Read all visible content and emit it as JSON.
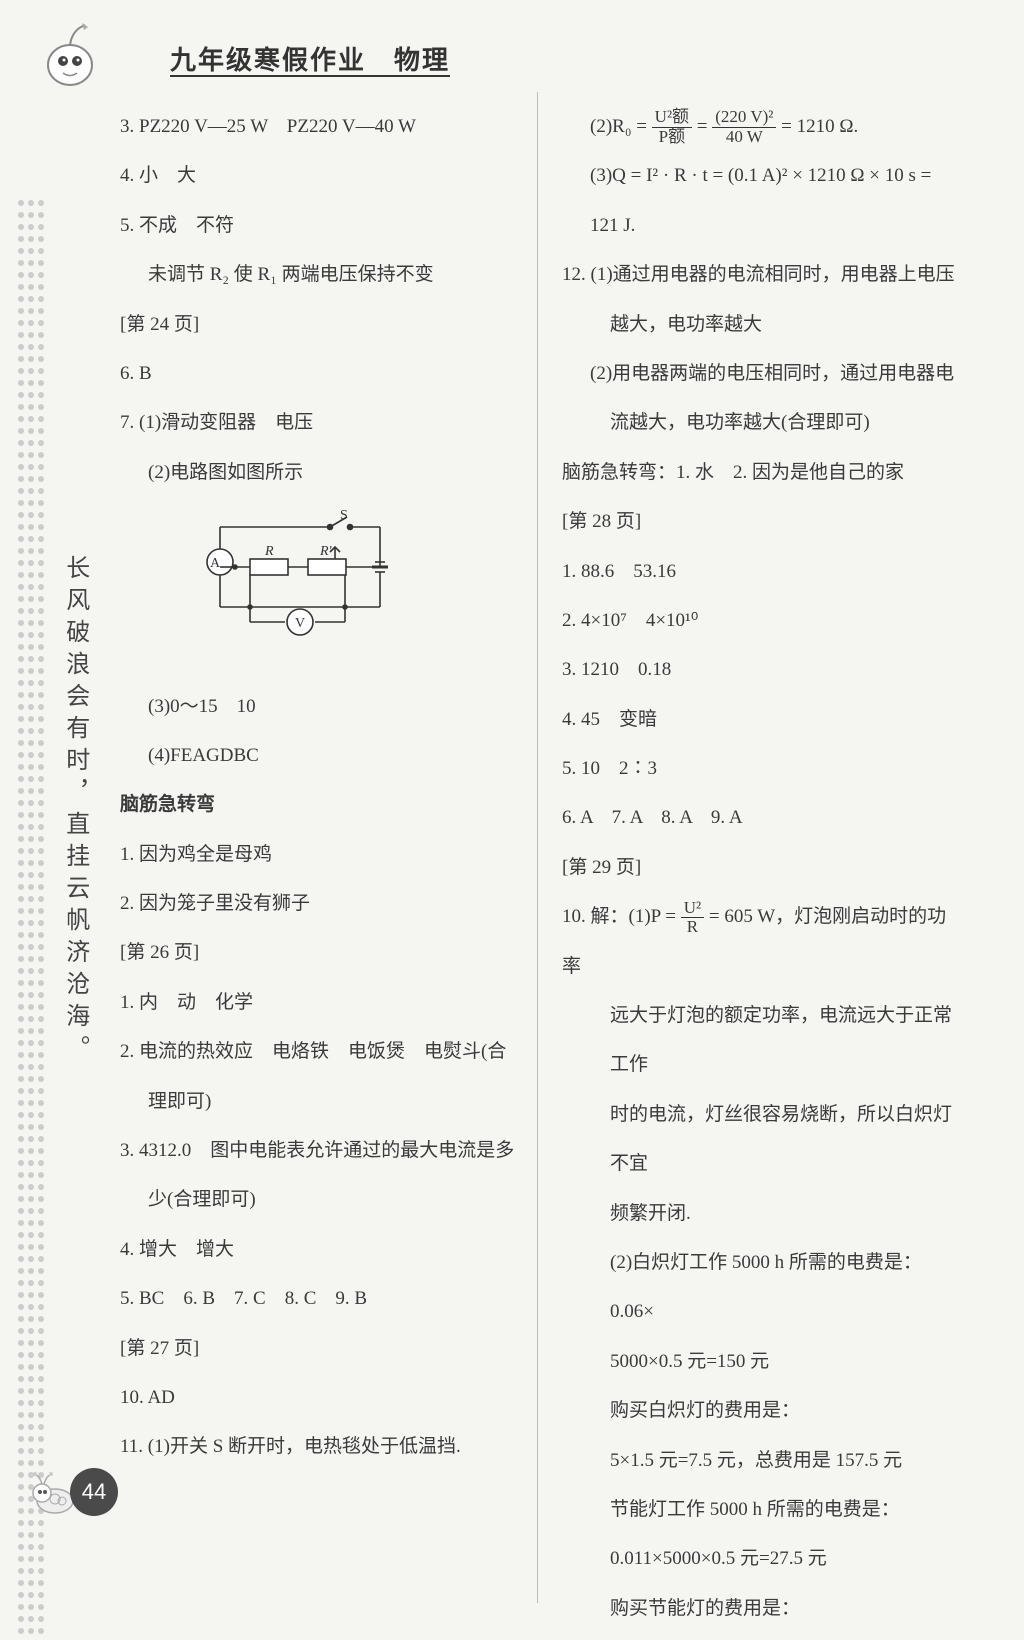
{
  "header": {
    "title": "九年级寒假作业　物理"
  },
  "sidebar": {
    "vertical_poem": "长风破浪会有时，直挂云帆济沧海。",
    "page_number": "44"
  },
  "left": {
    "l3": "3. PZ220 V—25 W　PZ220 V—40 W",
    "l4": "4. 小　大",
    "l5": "5. 不成　不符",
    "l5b": "未调节 R₂ 使 R₁ 两端电压保持不变",
    "p24": "[第 24 页]",
    "l6": "6. B",
    "l7_1": "7. (1)滑动变阻器　电压",
    "l7_2": "(2)电路图如图所示",
    "l7_3": "(3)0～15　10",
    "l7_4": "(4)FEAGDBC",
    "brain_head": "脑筋急转弯",
    "b1": "1. 因为鸡全是母鸡",
    "b2": "2. 因为笼子里没有狮子",
    "p26": "[第 26 页]",
    "c1": "1. 内　动　化学",
    "c2a": "2. 电流的热效应　电烙铁　电饭煲　电熨斗(合",
    "c2b": "理即可)",
    "c3a": "3. 4312.0　图中电能表允许通过的最大电流是多",
    "c3b": "少(合理即可)",
    "c4": "4. 增大　增大",
    "c5": "5. BC　6. B　7. C　8. C　9. B",
    "p27": "[第 27 页]",
    "c10": "10. AD",
    "c11": "11. (1)开关 S 断开时，电热毯处于低温挡."
  },
  "right": {
    "r2_pre": "(2)R₀ = ",
    "r2_frac1_num": "U²额",
    "r2_frac1_den": "P额",
    "r2_mid": " = ",
    "r2_frac2_num": "(220 V)²",
    "r2_frac2_den": "40 W",
    "r2_post": " = 1210 Ω.",
    "r3a": "(3)Q = I² · R · t = (0.1 A)² × 1210 Ω × 10 s =",
    "r3b": "121 J.",
    "r12_1a": "12. (1)通过用电器的电流相同时，用电器上电压",
    "r12_1b": "越大，电功率越大",
    "r12_2a": "(2)用电器两端的电压相同时，通过用电器电",
    "r12_2b": "流越大，电功率越大(合理即可)",
    "rbrain": "脑筋急转弯：1. 水　2. 因为是他自己的家",
    "p28": "[第 28 页]",
    "d1": "1. 88.6　53.16",
    "d2": "2. 4×10⁷　4×10¹⁰",
    "d3": "3. 1210　0.18",
    "d4": "4. 45　变暗",
    "d5": "5. 10　2∶3",
    "d6": "6. A　7. A　8. A　9. A",
    "p29": "[第 29 页]",
    "e10_pre": "10. 解：(1)P = ",
    "e10_num": "U²",
    "e10_den": "R",
    "e10_post": " = 605 W，灯泡刚启动时的功率",
    "e10_b": "远大于灯泡的额定功率，电流远大于正常工作",
    "e10_c": "时的电流，灯丝很容易烧断，所以白炽灯不宜",
    "e10_d": "频繁开闭.",
    "e10_2a": "(2)白炽灯工作 5000 h 所需的电费是：0.06×",
    "e10_2b": "5000×0.5 元=150 元",
    "e10_2c": "购买白炽灯的费用是：",
    "e10_2d": "5×1.5 元=7.5 元，总费用是 157.5 元",
    "e10_2e": "节能灯工作 5000 h 所需的电费是：",
    "e10_2f": "0.011×5000×0.5 元=27.5 元",
    "e10_2g": "购买节能灯的费用是："
  },
  "circuit": {
    "label_S": "S",
    "label_A": "A",
    "label_R": "R",
    "label_Rp": "R'",
    "label_V": "V"
  }
}
